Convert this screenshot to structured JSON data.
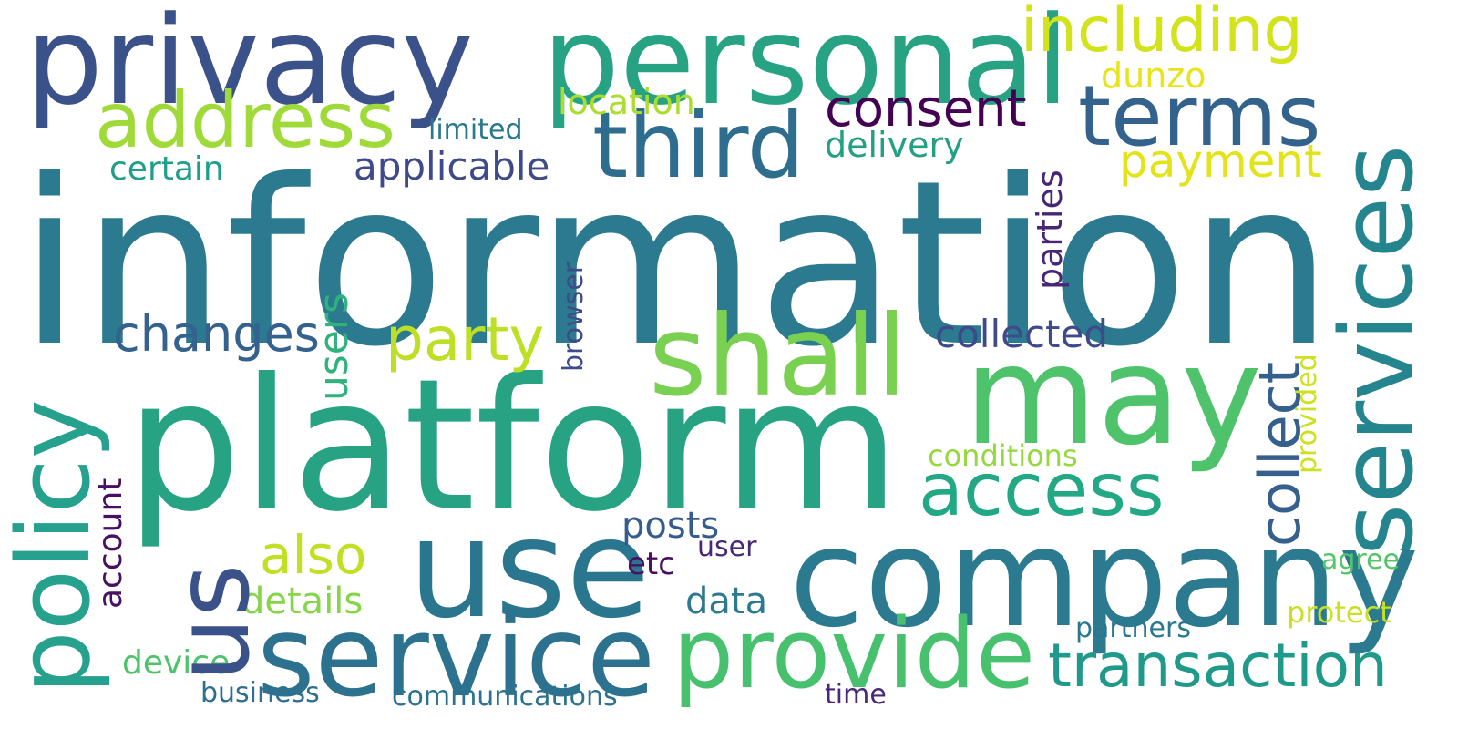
{
  "words": [
    {
      "text": "information"
    },
    {
      "text": "platform"
    },
    {
      "text": "privacy"
    },
    {
      "text": "personal"
    },
    {
      "text": "services"
    },
    {
      "text": "company"
    },
    {
      "text": "use"
    },
    {
      "text": "may"
    },
    {
      "text": "policy"
    },
    {
      "text": "service"
    },
    {
      "text": "us"
    },
    {
      "text": "shall"
    },
    {
      "text": "third"
    },
    {
      "text": "provide"
    },
    {
      "text": "address"
    },
    {
      "text": "terms"
    },
    {
      "text": "including"
    },
    {
      "text": "access"
    },
    {
      "text": "transaction"
    },
    {
      "text": "collect"
    },
    {
      "text": "consent"
    },
    {
      "text": "party"
    },
    {
      "text": "changes"
    },
    {
      "text": "also"
    },
    {
      "text": "applicable"
    },
    {
      "text": "payment"
    },
    {
      "text": "collected"
    },
    {
      "text": "users"
    },
    {
      "text": "parties"
    },
    {
      "text": "details"
    },
    {
      "text": "posts"
    },
    {
      "text": "data"
    },
    {
      "text": "delivery"
    },
    {
      "text": "location"
    },
    {
      "text": "certain"
    },
    {
      "text": "dunzo"
    },
    {
      "text": "account"
    },
    {
      "text": "device"
    },
    {
      "text": "conditions"
    },
    {
      "text": "limited"
    },
    {
      "text": "browser"
    },
    {
      "text": "provided"
    },
    {
      "text": "partners"
    },
    {
      "text": "protect"
    },
    {
      "text": "agree"
    },
    {
      "text": "user"
    },
    {
      "text": "etc"
    },
    {
      "text": "business"
    },
    {
      "text": "communications"
    },
    {
      "text": "time"
    }
  ],
  "colors": {
    "background": "#ffffff",
    "dark_purple": "#440154",
    "indigo": "#482878",
    "blue_purple": "#3e4a89",
    "slate_blue": "#31688e",
    "teal": "#26828e",
    "teal_green": "#1f9e89",
    "green": "#35b779",
    "light_green": "#6ece58",
    "yellow_green": "#b5de2b",
    "yellow": "#fde725"
  }
}
